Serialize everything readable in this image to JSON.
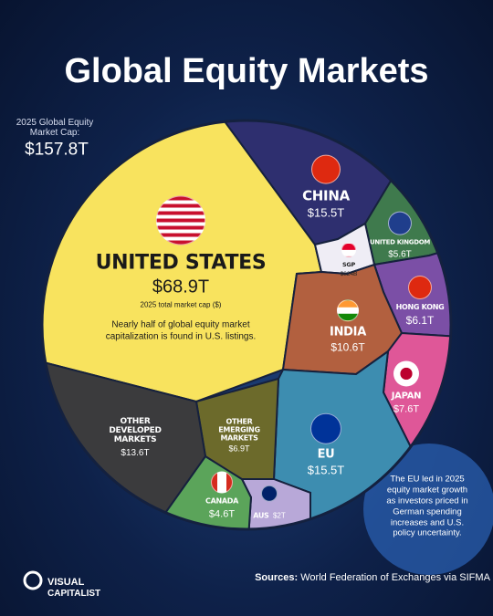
{
  "chart_data": {
    "type": "voronoi-treemap",
    "title": "Global Equity Markets",
    "total": {
      "label": "2025 Global Equity Market Cap:",
      "value": 157.8,
      "value_label": "$157.8T"
    },
    "categories": [
      "UNITED STATES",
      "CHINA",
      "UNITED KINGDOM",
      "SGP",
      "HONG KONG",
      "INDIA",
      "JAPAN",
      "EU",
      "AUS",
      "CANADA",
      "OTHER EMERGING MARKETS",
      "OTHER DEVELOPED MARKETS"
    ],
    "values": [
      68.9,
      15.5,
      5.6,
      0.824,
      6.1,
      10.6,
      7.6,
      15.5,
      2,
      4.6,
      6.9,
      13.6
    ],
    "value_labels": [
      "$68.9T",
      "$15.5T",
      "$5.6T",
      "$824B",
      "$6.1T",
      "$10.6T",
      "$7.6T",
      "$15.5T",
      "$2T",
      "$4.6T",
      "$6.9T",
      "$13.6T"
    ],
    "colors": [
      "#f8e35e",
      "#2e2f6f",
      "#3f7a4d",
      "#efedf5",
      "#7b4fa6",
      "#b2603f",
      "#df5798",
      "#3d8db0",
      "#b8a8d8",
      "#5ba45a",
      "#6c6a2b",
      "#3b3b3d"
    ],
    "us_subtitle": "2025 total market cap ($)",
    "us_note": "Nearly half of global equity market capitalization is found in U.S. listings.",
    "annotation": "The EU led in 2025 equity market growth as investors priced in German spending increases and U.S. policy uncertainty.",
    "source_label": "Sources:",
    "source": "World Federation of Exchanges via SIFMA",
    "logo": [
      "VISUAL",
      "CAPITALIST"
    ]
  }
}
